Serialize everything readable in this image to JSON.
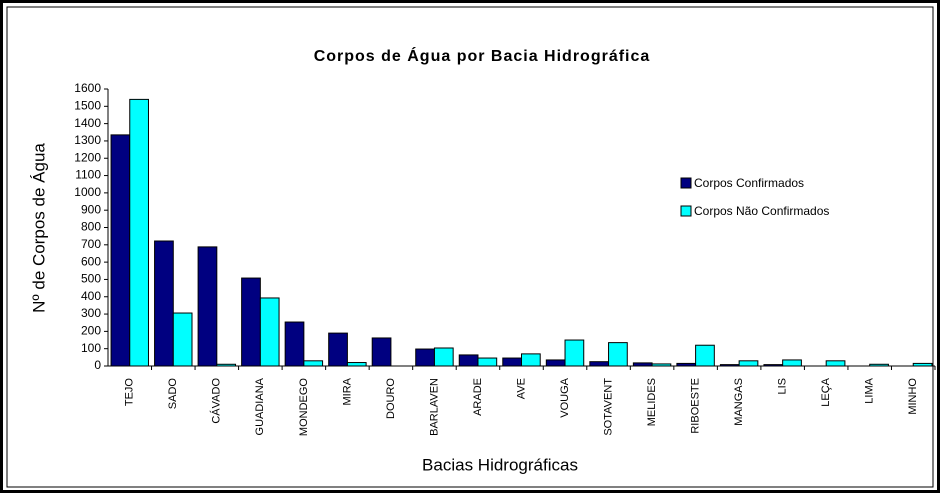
{
  "chart_data": {
    "type": "bar",
    "title": "Corpos de Água por Bacia Hidrográfica",
    "x_label": "Bacias Hidrográficas",
    "y_label": "Nº de Corpos de Água",
    "categories": [
      "TEJO",
      "SADO",
      "CÁVADO",
      "GUADIANA",
      "MONDEGO",
      "MIRA",
      "DOURO",
      "BARLAVEN",
      "ARADE",
      "AVE",
      "VOUGA",
      "SOTAVENT",
      "MELIDES",
      "RIBOESTE",
      "MANGAS",
      "LIS",
      "LEÇA",
      "LIMA",
      "MINHO"
    ],
    "series": [
      {
        "name": "Corpos Confirmados",
        "color": "#000080",
        "values": [
          1335,
          722,
          688,
          508,
          254,
          190,
          162,
          98,
          64,
          46,
          35,
          25,
          18,
          15,
          8,
          8,
          0,
          0,
          0
        ]
      },
      {
        "name": "Corpos Não Confirmados",
        "color": "#00ffff",
        "values": [
          1540,
          306,
          10,
          393,
          30,
          20,
          0,
          104,
          46,
          70,
          150,
          135,
          12,
          120,
          30,
          35,
          30,
          10,
          15
        ]
      }
    ],
    "ylim": [
      0,
      1600
    ],
    "yticks": [
      0,
      100,
      200,
      300,
      400,
      500,
      600,
      700,
      800,
      900,
      1000,
      1100,
      1200,
      1300,
      1400,
      1500,
      1600
    ],
    "grid": false,
    "legend": "right"
  }
}
